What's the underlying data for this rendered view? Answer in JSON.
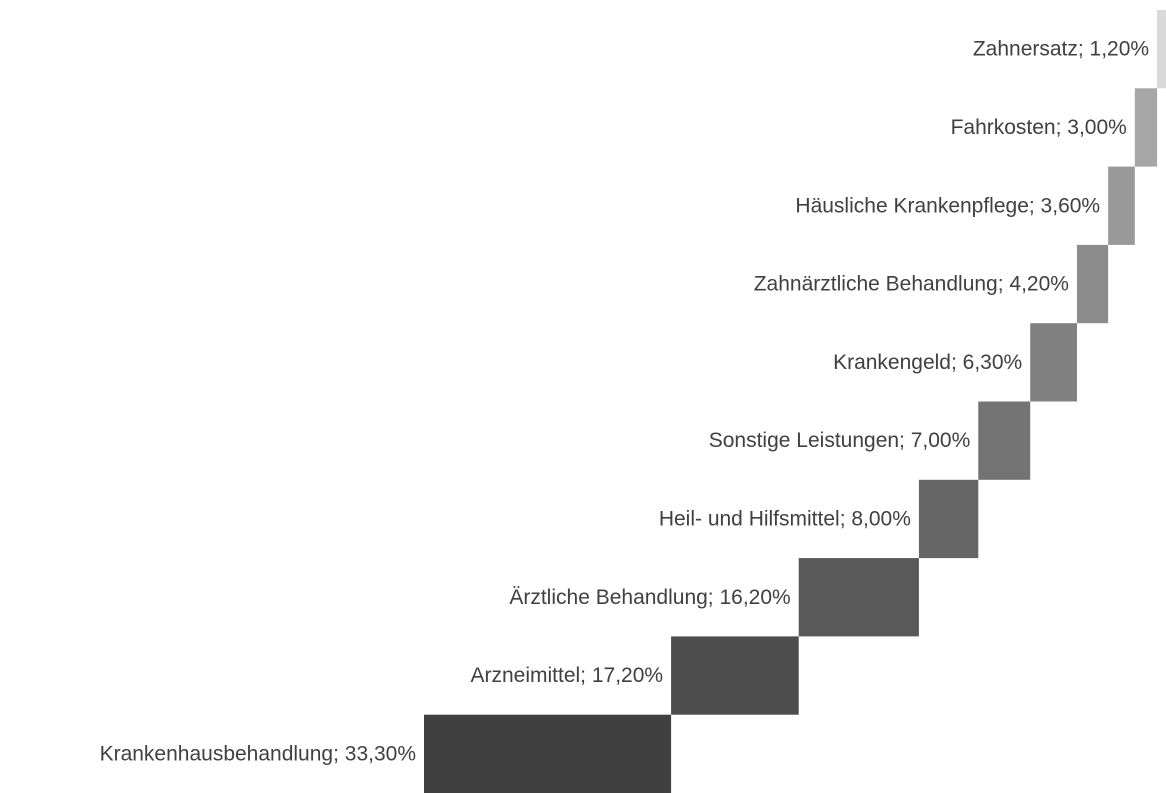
{
  "chart_data": {
    "type": "waterfall-bar",
    "values": [
      33.3,
      17.2,
      16.2,
      8.0,
      7.0,
      6.3,
      4.2,
      3.6,
      3.0,
      1.2
    ],
    "value_labels": [
      "Krankenhausbehandlung; 33,30%",
      "Arzneimittel; 17,20%",
      "Ärztliche Behandlung; 16,20%",
      "Heil- und Hilfsmittel; 8,00%",
      "Sonstige Leistungen; 7,00%",
      "Krankengeld; 6,30%",
      "Zahnärztliche Behandlung; 4,20%",
      "Häusliche Krankenpflege; 3,60%",
      "Fahrkosten; 3,00%",
      "Zahnersatz; 1,20%"
    ],
    "colors": [
      "#404040",
      "#4d4d4d",
      "#595959",
      "#666666",
      "#737373",
      "#808080",
      "#8c8c8c",
      "#999999",
      "#a6a6a6",
      "#d9d9d9"
    ],
    "xlim": [
      0,
      100
    ]
  }
}
